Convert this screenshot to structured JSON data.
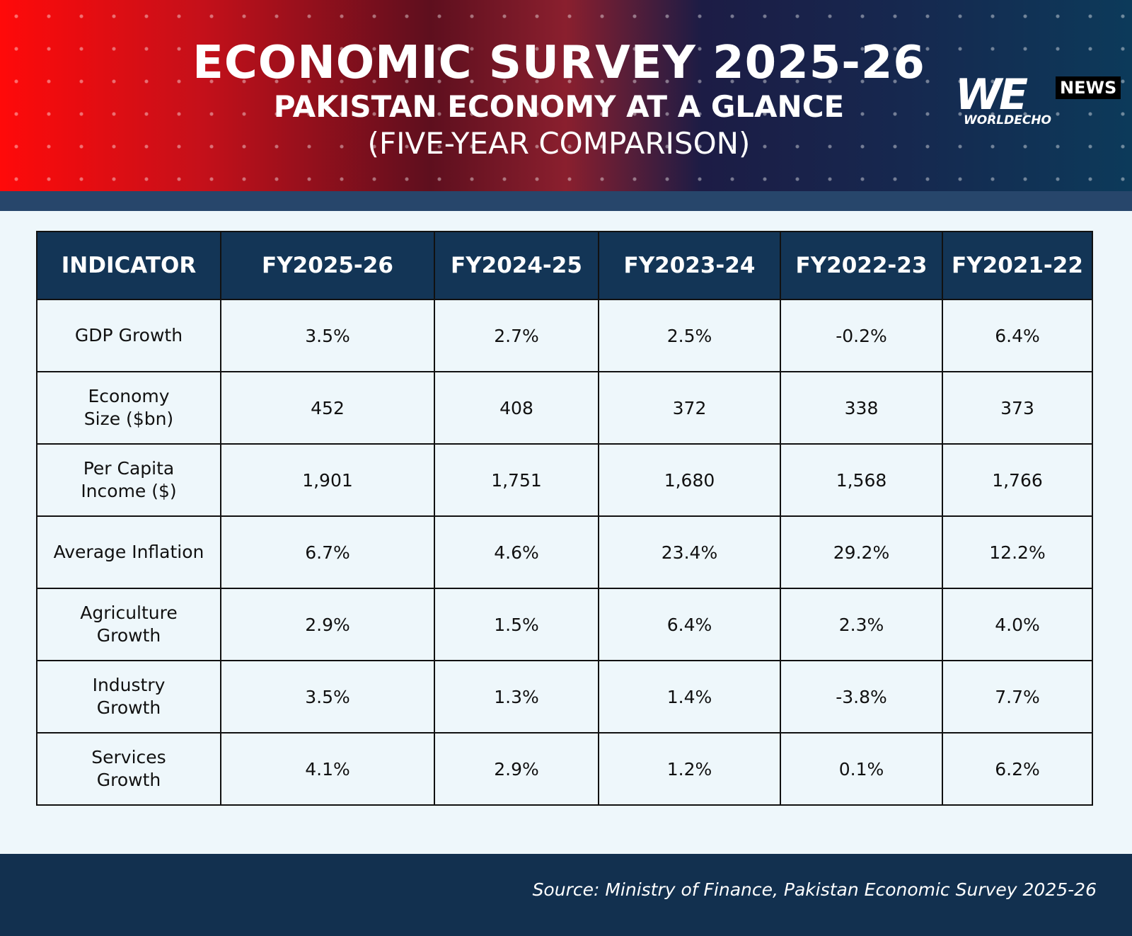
{
  "header": {
    "title": "ECONOMIC SURVEY 2025-26",
    "subtitle": "PAKISTAN ECONOMY AT A GLANCE",
    "note": "(FIVE-YEAR COMPARISON)",
    "logo": {
      "mark": "WE",
      "badge": "NEWS",
      "name": "WORLDECHO"
    }
  },
  "table": {
    "columns": [
      "INDICATOR",
      "FY2025-26",
      "FY2024-25",
      "FY2023-24",
      "FY2022-23",
      "FY2021-22"
    ],
    "rows": [
      [
        "GDP Growth",
        "3.5%",
        "2.7%",
        "2.5%",
        "-0.2%",
        "6.4%"
      ],
      [
        "Economy Size ($bn)",
        "452",
        "408",
        "372",
        "338",
        "373"
      ],
      [
        "Per Capita Income ($)",
        "1,901",
        "1,751",
        "1,680",
        "1,568",
        "1,766"
      ],
      [
        "Average Inflation",
        "6.7%",
        "4.6%",
        "23.4%",
        "29.2%",
        "12.2%"
      ],
      [
        "Agriculture Growth",
        "2.9%",
        "1.5%",
        "6.4%",
        "2.3%",
        "4.0%"
      ],
      [
        "Industry Growth",
        "3.5%",
        "1.3%",
        "1.4%",
        "-3.8%",
        "7.7%"
      ],
      [
        "Services Growth",
        "4.1%",
        "2.9%",
        "1.2%",
        "0.1%",
        "6.2%"
      ]
    ]
  },
  "footer": {
    "source": "Source: Ministry of Finance, Pakistan Economic Survey 2025-26"
  }
}
